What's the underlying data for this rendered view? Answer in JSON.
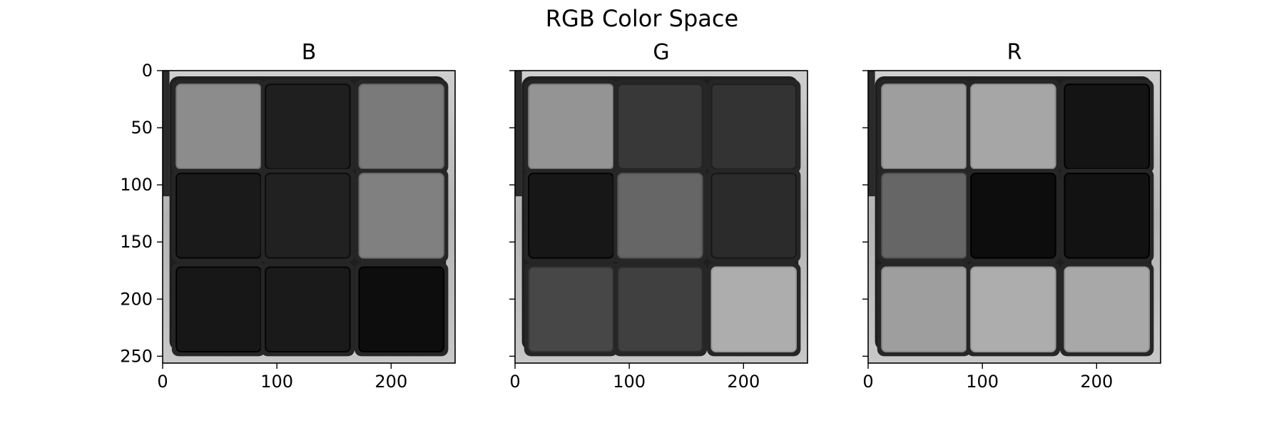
{
  "figure": {
    "suptitle": "RGB Color Space"
  },
  "chart_data": [
    {
      "type": "heatmap",
      "title": "B",
      "colormap": "gray",
      "image_shape": [
        256,
        256
      ],
      "xlim": [
        0,
        256
      ],
      "ylim": [
        256,
        0
      ],
      "y_axis_inverted": true,
      "x_ticks": [
        0,
        100,
        200
      ],
      "x_tick_labels": [
        "0",
        "100",
        "200"
      ],
      "y_ticks": [
        0,
        50,
        100,
        150,
        200,
        250
      ],
      "y_tick_labels": [
        "0",
        "50",
        "100",
        "150",
        "200",
        "250"
      ],
      "sticker_grid_intensity": [
        [
          0.55,
          0.12,
          0.48
        ],
        [
          0.1,
          0.13,
          0.5
        ],
        [
          0.09,
          0.1,
          0.05
        ]
      ]
    },
    {
      "type": "heatmap",
      "title": "G",
      "colormap": "gray",
      "image_shape": [
        256,
        256
      ],
      "xlim": [
        0,
        256
      ],
      "ylim": [
        256,
        0
      ],
      "y_axis_inverted": true,
      "x_ticks": [
        0,
        100,
        200
      ],
      "x_tick_labels": [
        "0",
        "100",
        "200"
      ],
      "y_ticks": [
        0,
        50,
        100,
        150,
        200,
        250
      ],
      "y_tick_labels": [
        "",
        "",
        "",
        "",
        "",
        ""
      ],
      "sticker_grid_intensity": [
        [
          0.58,
          0.22,
          0.2
        ],
        [
          0.09,
          0.4,
          0.17
        ],
        [
          0.28,
          0.25,
          0.68
        ]
      ]
    },
    {
      "type": "heatmap",
      "title": "R",
      "colormap": "gray",
      "image_shape": [
        256,
        256
      ],
      "xlim": [
        0,
        256
      ],
      "ylim": [
        256,
        0
      ],
      "y_axis_inverted": true,
      "x_ticks": [
        0,
        100,
        200
      ],
      "x_tick_labels": [
        "0",
        "100",
        "200"
      ],
      "y_ticks": [
        0,
        50,
        100,
        150,
        200,
        250
      ],
      "y_tick_labels": [
        "",
        "",
        "",
        "",
        "",
        ""
      ],
      "sticker_grid_intensity": [
        [
          0.62,
          0.65,
          0.08
        ],
        [
          0.4,
          0.05,
          0.07
        ],
        [
          0.62,
          0.68,
          0.66
        ]
      ]
    }
  ]
}
